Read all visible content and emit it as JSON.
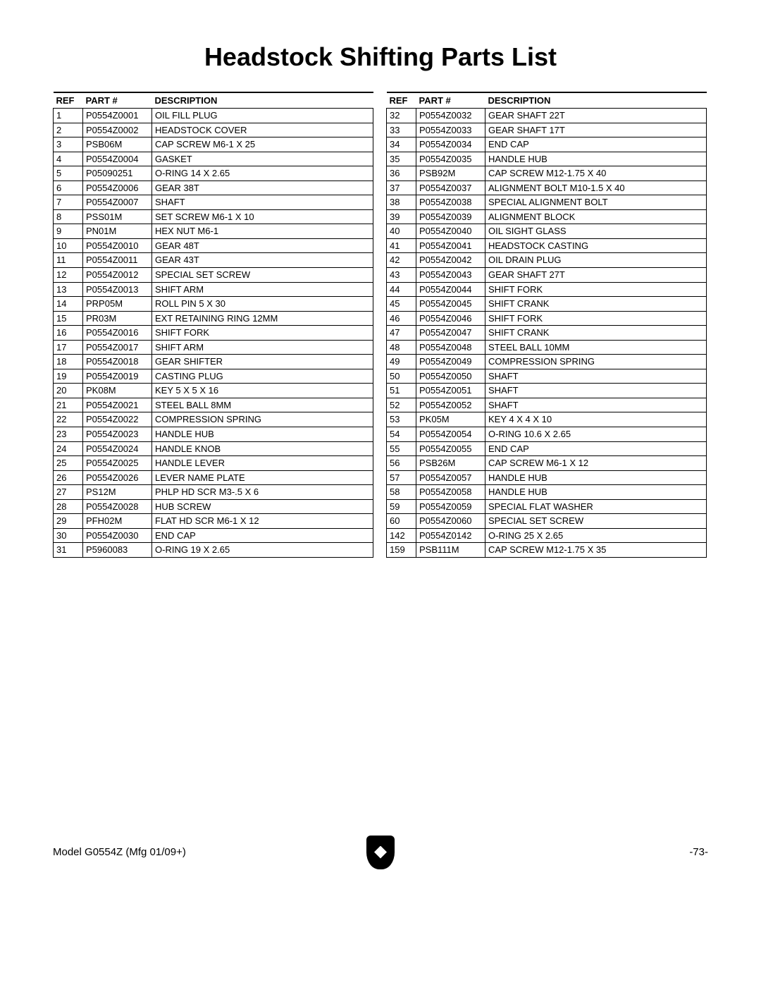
{
  "title": "Headstock Shifting Parts List",
  "headers": {
    "ref": "REF",
    "part": "PART #",
    "desc": "DESCRIPTION"
  },
  "footer": {
    "left": "Model G0554Z (Mfg 01/09+)",
    "right": "-73-"
  },
  "left_rows": [
    {
      "ref": "1",
      "part": "P0554Z0001",
      "desc": "OIL FILL PLUG"
    },
    {
      "ref": "2",
      "part": "P0554Z0002",
      "desc": "HEADSTOCK COVER"
    },
    {
      "ref": "3",
      "part": "PSB06M",
      "desc": "CAP SCREW M6-1 X 25"
    },
    {
      "ref": "4",
      "part": "P0554Z0004",
      "desc": "GASKET"
    },
    {
      "ref": "5",
      "part": "P05090251",
      "desc": "O-RING 14 X 2.65"
    },
    {
      "ref": "6",
      "part": "P0554Z0006",
      "desc": "GEAR 38T"
    },
    {
      "ref": "7",
      "part": "P0554Z0007",
      "desc": "SHAFT"
    },
    {
      "ref": "8",
      "part": "PSS01M",
      "desc": "SET SCREW M6-1 X 10"
    },
    {
      "ref": "9",
      "part": "PN01M",
      "desc": "HEX NUT M6-1"
    },
    {
      "ref": "10",
      "part": "P0554Z0010",
      "desc": "GEAR 48T"
    },
    {
      "ref": "11",
      "part": "P0554Z0011",
      "desc": "GEAR 43T"
    },
    {
      "ref": "12",
      "part": "P0554Z0012",
      "desc": "SPECIAL SET SCREW"
    },
    {
      "ref": "13",
      "part": "P0554Z0013",
      "desc": "SHIFT ARM"
    },
    {
      "ref": "14",
      "part": "PRP05M",
      "desc": "ROLL PIN 5 X 30"
    },
    {
      "ref": "15",
      "part": "PR03M",
      "desc": "EXT RETAINING RING 12MM"
    },
    {
      "ref": "16",
      "part": "P0554Z0016",
      "desc": "SHIFT FORK"
    },
    {
      "ref": "17",
      "part": "P0554Z0017",
      "desc": "SHIFT ARM"
    },
    {
      "ref": "18",
      "part": "P0554Z0018",
      "desc": "GEAR SHIFTER"
    },
    {
      "ref": "19",
      "part": "P0554Z0019",
      "desc": "CASTING PLUG"
    },
    {
      "ref": "20",
      "part": "PK08M",
      "desc": "KEY 5 X 5 X 16"
    },
    {
      "ref": "21",
      "part": "P0554Z0021",
      "desc": "STEEL BALL 8MM"
    },
    {
      "ref": "22",
      "part": "P0554Z0022",
      "desc": "COMPRESSION SPRING"
    },
    {
      "ref": "23",
      "part": "P0554Z0023",
      "desc": "HANDLE HUB"
    },
    {
      "ref": "24",
      "part": "P0554Z0024",
      "desc": "HANDLE KNOB"
    },
    {
      "ref": "25",
      "part": "P0554Z0025",
      "desc": "HANDLE LEVER"
    },
    {
      "ref": "26",
      "part": "P0554Z0026",
      "desc": "LEVER NAME PLATE"
    },
    {
      "ref": "27",
      "part": "PS12M",
      "desc": "PHLP HD SCR M3-.5 X 6"
    },
    {
      "ref": "28",
      "part": "P0554Z0028",
      "desc": "HUB SCREW"
    },
    {
      "ref": "29",
      "part": "PFH02M",
      "desc": "FLAT HD SCR M6-1 X 12"
    },
    {
      "ref": "30",
      "part": "P0554Z0030",
      "desc": "END CAP"
    },
    {
      "ref": "31",
      "part": "P5960083",
      "desc": "O-RING 19 X 2.65"
    }
  ],
  "right_rows": [
    {
      "ref": "32",
      "part": "P0554Z0032",
      "desc": "GEAR SHAFT 22T"
    },
    {
      "ref": "33",
      "part": "P0554Z0033",
      "desc": "GEAR SHAFT 17T"
    },
    {
      "ref": "34",
      "part": "P0554Z0034",
      "desc": "END CAP"
    },
    {
      "ref": "35",
      "part": "P0554Z0035",
      "desc": "HANDLE HUB"
    },
    {
      "ref": "36",
      "part": "PSB92M",
      "desc": "CAP SCREW M12-1.75 X 40"
    },
    {
      "ref": "37",
      "part": "P0554Z0037",
      "desc": "ALIGNMENT BOLT M10-1.5 X 40"
    },
    {
      "ref": "38",
      "part": "P0554Z0038",
      "desc": "SPECIAL ALIGNMENT BOLT"
    },
    {
      "ref": "39",
      "part": "P0554Z0039",
      "desc": "ALIGNMENT BLOCK"
    },
    {
      "ref": "40",
      "part": "P0554Z0040",
      "desc": "OIL SIGHT GLASS"
    },
    {
      "ref": "41",
      "part": "P0554Z0041",
      "desc": "HEADSTOCK CASTING"
    },
    {
      "ref": "42",
      "part": "P0554Z0042",
      "desc": "OIL DRAIN PLUG"
    },
    {
      "ref": "43",
      "part": "P0554Z0043",
      "desc": "GEAR SHAFT 27T"
    },
    {
      "ref": "44",
      "part": "P0554Z0044",
      "desc": "SHIFT FORK"
    },
    {
      "ref": "45",
      "part": "P0554Z0045",
      "desc": "SHIFT CRANK"
    },
    {
      "ref": "46",
      "part": "P0554Z0046",
      "desc": "SHIFT FORK"
    },
    {
      "ref": "47",
      "part": "P0554Z0047",
      "desc": "SHIFT CRANK"
    },
    {
      "ref": "48",
      "part": "P0554Z0048",
      "desc": "STEEL BALL 10MM"
    },
    {
      "ref": "49",
      "part": "P0554Z0049",
      "desc": "COMPRESSION SPRING"
    },
    {
      "ref": "50",
      "part": "P0554Z0050",
      "desc": "SHAFT"
    },
    {
      "ref": "51",
      "part": "P0554Z0051",
      "desc": "SHAFT"
    },
    {
      "ref": "52",
      "part": "P0554Z0052",
      "desc": "SHAFT"
    },
    {
      "ref": "53",
      "part": "PK05M",
      "desc": "KEY 4 X 4 X 10"
    },
    {
      "ref": "54",
      "part": "P0554Z0054",
      "desc": "O-RING 10.6 X 2.65"
    },
    {
      "ref": "55",
      "part": "P0554Z0055",
      "desc": "END CAP"
    },
    {
      "ref": "56",
      "part": "PSB26M",
      "desc": "CAP SCREW M6-1 X 12"
    },
    {
      "ref": "57",
      "part": "P0554Z0057",
      "desc": "HANDLE HUB"
    },
    {
      "ref": "58",
      "part": "P0554Z0058",
      "desc": "HANDLE HUB"
    },
    {
      "ref": "59",
      "part": "P0554Z0059",
      "desc": "SPECIAL FLAT WASHER"
    },
    {
      "ref": "60",
      "part": "P0554Z0060",
      "desc": "SPECIAL SET SCREW"
    },
    {
      "ref": "142",
      "part": "P0554Z0142",
      "desc": "O-RING 25 X 2.65"
    },
    {
      "ref": "159",
      "part": "PSB111M",
      "desc": "CAP SCREW M12-1.75 X 35"
    }
  ]
}
